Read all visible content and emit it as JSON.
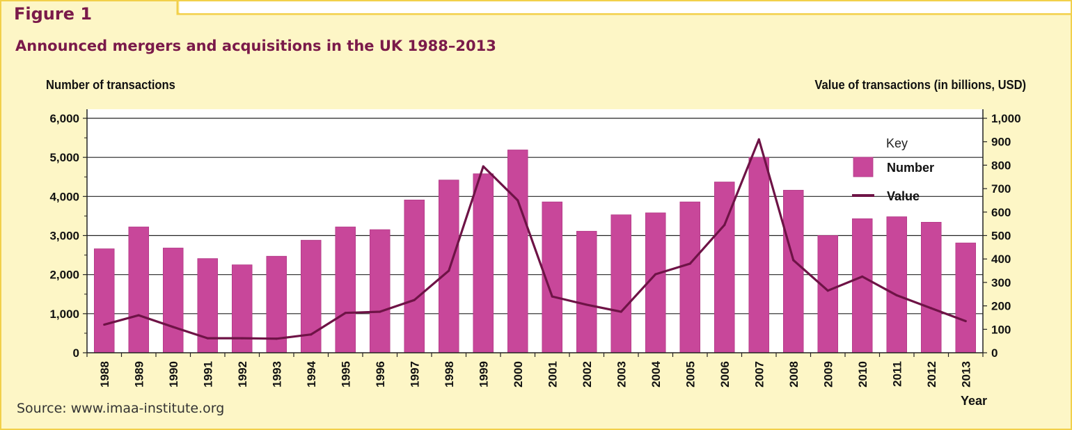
{
  "figure_label": "Figure 1",
  "chart_data": {
    "type": "bar",
    "title": "Announced mergers and acquisitions in the UK 1988–2013",
    "ylabel": "Number of transactions",
    "y2label": "Value of transactions (in billions, USD)",
    "xlabel": "Year",
    "categories": [
      "1988",
      "1989",
      "1990",
      "1991",
      "1992",
      "1993",
      "1994",
      "1995",
      "1996",
      "1997",
      "1998",
      "1999",
      "2000",
      "2001",
      "2002",
      "2003",
      "2004",
      "2005",
      "2006",
      "2007",
      "2008",
      "2009",
      "2010",
      "2011",
      "2012",
      "2013"
    ],
    "ylim": [
      0,
      6000
    ],
    "y2lim": [
      0,
      1000
    ],
    "yticks": [
      "0",
      "1,000",
      "2,000",
      "3,000",
      "4,000",
      "5,000",
      "6,000"
    ],
    "y2ticks": [
      "0",
      "100",
      "200",
      "300",
      "400",
      "500",
      "600",
      "700",
      "800",
      "900",
      "1,000"
    ],
    "grid": true,
    "legend": {
      "title": "Key",
      "placement": "top-right"
    },
    "series": [
      {
        "name": "Number",
        "type": "bar",
        "axis": "left",
        "color": "#c8479a",
        "values": [
          2660,
          3220,
          2680,
          2410,
          2250,
          2470,
          2880,
          3220,
          3150,
          3910,
          4420,
          4580,
          5190,
          3860,
          3110,
          3530,
          3580,
          3860,
          4370,
          5000,
          4160,
          3000,
          3430,
          3480,
          3340,
          2810
        ]
      },
      {
        "name": "Value",
        "type": "line",
        "axis": "right",
        "color": "#6e1346",
        "values": [
          120,
          160,
          110,
          62,
          62,
          60,
          78,
          170,
          175,
          225,
          350,
          795,
          650,
          240,
          205,
          175,
          335,
          380,
          545,
          910,
          395,
          265,
          325,
          245,
          190,
          135
        ]
      }
    ]
  },
  "source_text": "Source: www.imaa-institute.org"
}
